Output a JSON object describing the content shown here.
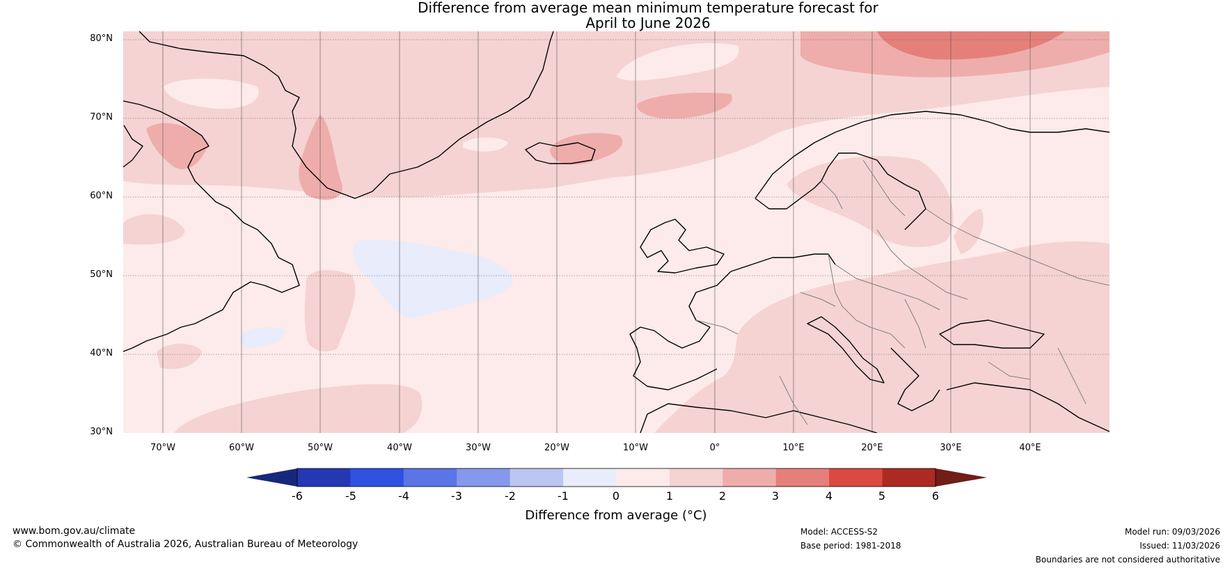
{
  "title": {
    "line1": "Difference from average mean minimum temperature forecast for",
    "line2": "April to June 2026"
  },
  "map": {
    "lat_labels": [
      "80°N",
      "70°N",
      "60°N",
      "50°N",
      "40°N",
      "30°N"
    ],
    "lon_labels": [
      "70°W",
      "60°W",
      "50°W",
      "40°W",
      "30°W",
      "20°W",
      "10°W",
      "0°",
      "10°E",
      "20°E",
      "30°E",
      "40°E"
    ],
    "extent": {
      "lon_min": -75,
      "lon_max": 50,
      "lat_min": 30,
      "lat_max": 81
    },
    "colors": {
      "land_coast": "#000000",
      "borders": "#808080",
      "grid": "#555555",
      "background_anomaly": "#fcebea"
    }
  },
  "colorbar": {
    "ticks": [
      "-6",
      "-5",
      "-4",
      "-3",
      "-2",
      "-1",
      "0",
      "1",
      "2",
      "3",
      "4",
      "5",
      "6"
    ],
    "label": "Difference from average (°C)",
    "colors": [
      "#17287a",
      "#2538b4",
      "#3050e0",
      "#5b74e6",
      "#8598eb",
      "#bcc6f3",
      "#e8ecfb",
      "#fcebea",
      "#f5d3d2",
      "#eeadab",
      "#e57f7a",
      "#da4a41",
      "#ad2a24",
      "#711d18"
    ]
  },
  "footer": {
    "website": "www.bom.gov.au/climate",
    "copyright": "© Commonwealth of Australia 2026, Australian Bureau of Meteorology",
    "model": "Model: ACCESS-S2",
    "base_period": "Base period: 1981-2018",
    "model_run": "Model run: 09/03/2026",
    "issued": "Issued: 11/03/2026",
    "disclaimer": "Boundaries are not considered authoritative"
  }
}
